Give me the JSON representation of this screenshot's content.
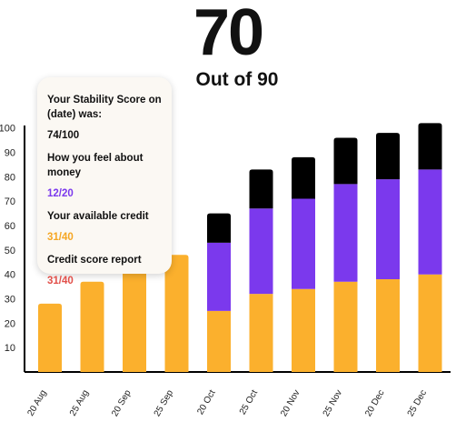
{
  "header": {
    "score": "70",
    "subtitle": "Out of 90"
  },
  "tooltip": {
    "stability_label": "Your Stability Score on (date) was:",
    "stability_value": "74/100",
    "feel_label": "How you feel about money",
    "feel_value": "12/20",
    "credit_label": "Your available credit",
    "credit_value": "31/40",
    "report_label": "Credit score report",
    "report_value": "31/40"
  },
  "colors": {
    "orange": "#FBB02D",
    "purple": "#7B39ED",
    "black": "#000000",
    "feel_text": "#7B39ED",
    "credit_text": "#F5A623",
    "report_text": "#E2504A"
  },
  "chart_data": {
    "type": "bar",
    "stacked": true,
    "categories": [
      "20 Aug",
      "25 Aug",
      "20 Sep",
      "25 Sep",
      "20 Oct",
      "25 Oct",
      "20 Nov",
      "25 Nov",
      "20 Dec",
      "25 Dec"
    ],
    "series": [
      {
        "values": [
          28,
          37,
          42,
          48,
          25,
          32,
          34,
          37,
          38,
          40
        ]
      },
      {
        "values": [
          0,
          0,
          0,
          0,
          28,
          35,
          37,
          40,
          41,
          43
        ]
      },
      {
        "values": [
          0,
          0,
          0,
          0,
          12,
          16,
          17,
          19,
          19,
          19
        ]
      }
    ],
    "yticks": [
      10,
      20,
      30,
      40,
      50,
      60,
      70,
      80,
      90,
      100
    ],
    "ylim": [
      0,
      104
    ],
    "grid": false
  }
}
